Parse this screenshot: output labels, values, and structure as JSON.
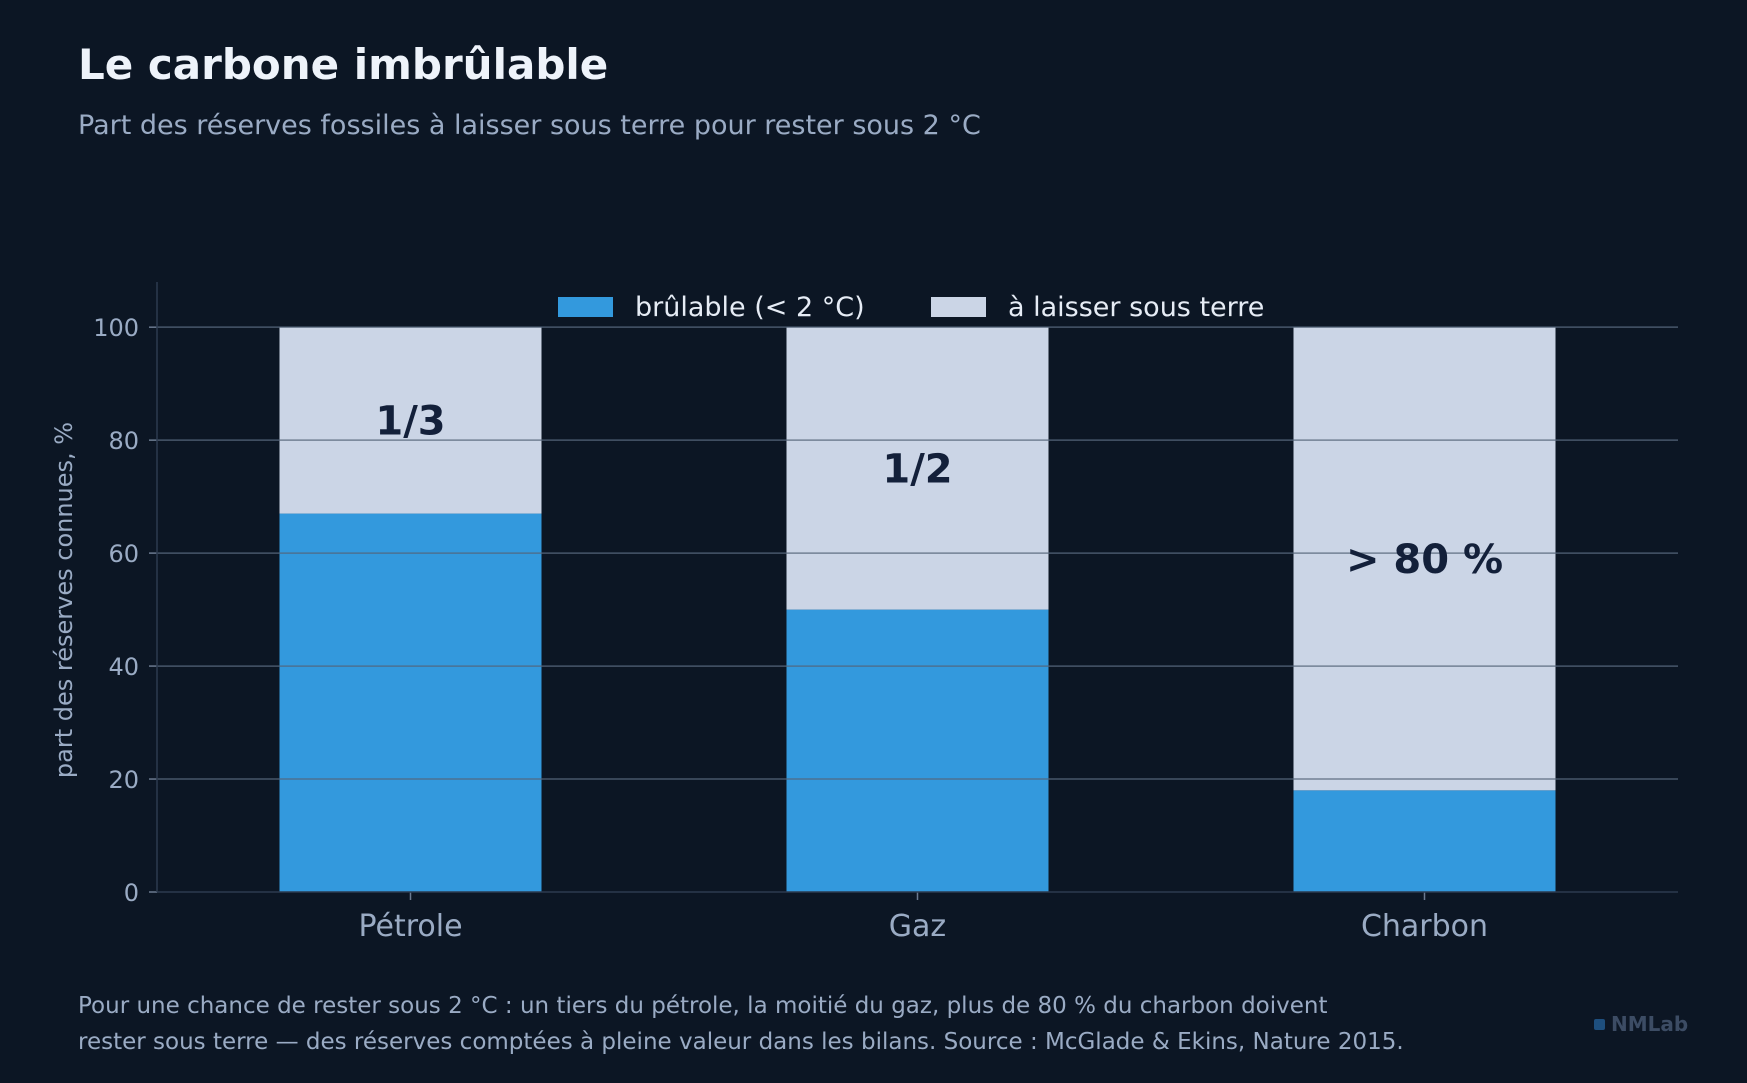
{
  "title": "Le carbone imbrûlable",
  "subtitle": "Part des réserves fossiles à laisser sous terre pour rester sous 2 °C",
  "footer": {
    "line1": "Pour une chance de rester sous 2 °C : un tiers du pétrole, la moitié du gaz, plus de 80 % du charbon doivent",
    "line2": "rester sous terre — des réserves comptées à pleine valeur dans les bilans. Source : McGlade & Ekins, Nature 2015."
  },
  "brand": "NMLab",
  "colors": {
    "background": "#0c1624",
    "burnable": "#3399dd",
    "keep": "#cbd5e6",
    "bar_label": "#13203a",
    "axis_text": "#9aabc4"
  },
  "chart_data": {
    "type": "bar",
    "stacked": true,
    "categories": [
      "Pétrole",
      "Gaz",
      "Charbon"
    ],
    "series": [
      {
        "name": "brûlable (< 2 °C)",
        "values": [
          67,
          50,
          18
        ]
      },
      {
        "name": "à laisser sous terre",
        "values": [
          33,
          50,
          82
        ]
      }
    ],
    "bar_labels": [
      "1/3",
      "1/2",
      "> 80 %"
    ],
    "ylabel": "part des réserves connues, %",
    "xlabel": "",
    "ylim": [
      0,
      108
    ],
    "yticks": [
      0,
      20,
      40,
      60,
      80,
      100
    ],
    "grid": true,
    "legend_position": "top-center"
  }
}
